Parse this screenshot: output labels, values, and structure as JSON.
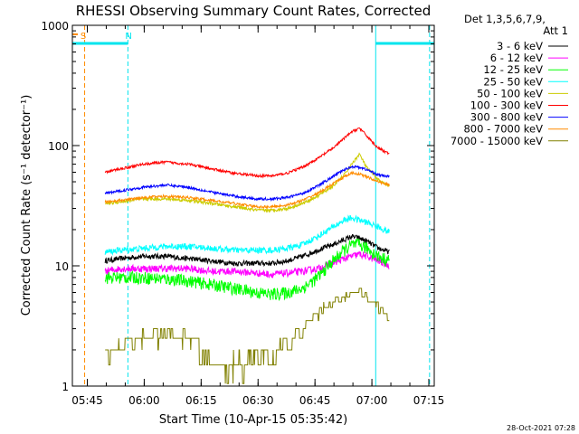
{
  "chart_data": {
    "type": "line",
    "title": "RHESSI Observing Summary Count Rates, Corrected",
    "xlabel": "Start Time (10-Apr-15 05:35:42)",
    "ylabel": "Corrected Count Rate (s⁻¹ detector⁻¹)",
    "yscale": "log",
    "ylim": [
      1,
      1000
    ],
    "xlim_minutes": [
      5.37,
      100.73
    ],
    "xticks": [
      {
        "label": "05:45",
        "minutes": 9.3
      },
      {
        "label": "06:00",
        "minutes": 24.3
      },
      {
        "label": "06:15",
        "minutes": 39.3
      },
      {
        "label": "06:30",
        "minutes": 54.3
      },
      {
        "label": "06:45",
        "minutes": 69.3
      },
      {
        "label": "07:00",
        "minutes": 84.3
      },
      {
        "label": "07:15",
        "minutes": 99.3
      }
    ],
    "yticks": [
      {
        "label": "1",
        "value": 1
      },
      {
        "label": "10",
        "value": 10
      },
      {
        "label": "100",
        "value": 100
      },
      {
        "label": "1000",
        "value": 1000
      }
    ],
    "legend_header": [
      "Det 1,3,5,6,7,9,",
      "Att 1"
    ],
    "legend_position": "right",
    "flags": [
      {
        "label": "S",
        "color": "#ff8c00",
        "minutes": 7.5
      },
      {
        "label": "N",
        "color": "#00e5ee",
        "minutes": 19.3
      }
    ],
    "night_bars": [
      {
        "from": 5.37,
        "to": 20.0
      },
      {
        "from": 85.3,
        "to": 100.73
      }
    ],
    "vlines": [
      {
        "minutes": 5.37,
        "color": "#00e5ee",
        "style": "solid"
      },
      {
        "minutes": 8.6,
        "color": "#ff8c00",
        "style": "dashed"
      },
      {
        "minutes": 20.0,
        "color": "#00e5ee",
        "style": "dashed"
      },
      {
        "minutes": 85.3,
        "color": "#00e5ee",
        "style": "solid"
      },
      {
        "minutes": 99.5,
        "color": "#00e5ee",
        "style": "dashed"
      }
    ],
    "x": [
      14.0,
      18.0,
      24.0,
      30.0,
      36.0,
      42.0,
      48.0,
      54.0,
      58.0,
      62.0,
      66.0,
      70.0,
      74.0,
      77.0,
      79.0,
      81.0,
      83.0,
      86.0,
      89.0
    ],
    "series": [
      {
        "name": "3 - 6 keV",
        "color": "#000000",
        "values": [
          11,
          11.5,
          12,
          12,
          11.5,
          11,
          10.5,
          10.5,
          10.5,
          11,
          12,
          13.5,
          15,
          16.5,
          17.5,
          17,
          16,
          14,
          13
        ]
      },
      {
        "name": "6 - 12 keV",
        "color": "#ff00ff",
        "values": [
          9,
          9.5,
          9.5,
          9.5,
          9.5,
          9,
          9,
          8.7,
          8.5,
          8.7,
          9,
          9.5,
          10.5,
          11.5,
          12,
          12.5,
          12,
          11,
          10
        ]
      },
      {
        "name": "12 - 25 keV",
        "color": "#00ff00",
        "values": [
          8,
          8,
          8,
          7.8,
          7.5,
          7,
          6.5,
          6,
          5.8,
          6,
          6.5,
          8,
          11,
          13.5,
          15,
          15,
          14,
          12,
          11
        ]
      },
      {
        "name": "25 - 50 keV",
        "color": "#00ffff",
        "values": [
          13,
          13.5,
          14,
          14.5,
          14.5,
          14,
          13.5,
          13.5,
          13.5,
          14,
          15,
          17.5,
          21,
          24,
          25,
          24,
          23,
          21,
          19
        ]
      },
      {
        "name": "50 - 100 keV",
        "color": "#cccc00",
        "values": [
          33,
          34,
          36,
          36,
          35,
          33,
          31,
          29,
          29,
          30,
          33,
          38,
          46,
          57,
          70,
          85,
          65,
          52,
          45
        ]
      },
      {
        "name": "100 - 300 keV",
        "color": "#ff0000",
        "values": [
          60,
          64,
          70,
          73,
          70,
          64,
          59,
          56,
          56,
          59,
          66,
          78,
          95,
          115,
          130,
          140,
          120,
          95,
          85
        ]
      },
      {
        "name": "300 - 800 keV",
        "color": "#0000ff",
        "values": [
          40,
          42,
          45,
          47,
          45,
          41,
          38,
          36,
          36,
          37,
          40,
          46,
          55,
          63,
          67,
          66,
          63,
          57,
          55
        ]
      },
      {
        "name": "800 - 7000 keV",
        "color": "#ff8c00",
        "values": [
          34,
          35,
          37,
          38,
          37,
          35,
          33,
          31,
          31,
          32,
          35,
          40,
          48,
          55,
          59,
          58,
          55,
          50,
          47
        ]
      },
      {
        "name": "7000 - 15000 keV",
        "color": "#808000",
        "values": [
          2,
          2.2,
          2.4,
          2.5,
          2.4,
          1.6,
          1.4,
          1.5,
          1.8,
          2.2,
          3,
          4,
          5,
          5.5,
          6,
          6,
          5.5,
          4.5,
          3
        ]
      }
    ]
  },
  "footer": {
    "timestamp": "28-Oct-2021 07:28"
  }
}
